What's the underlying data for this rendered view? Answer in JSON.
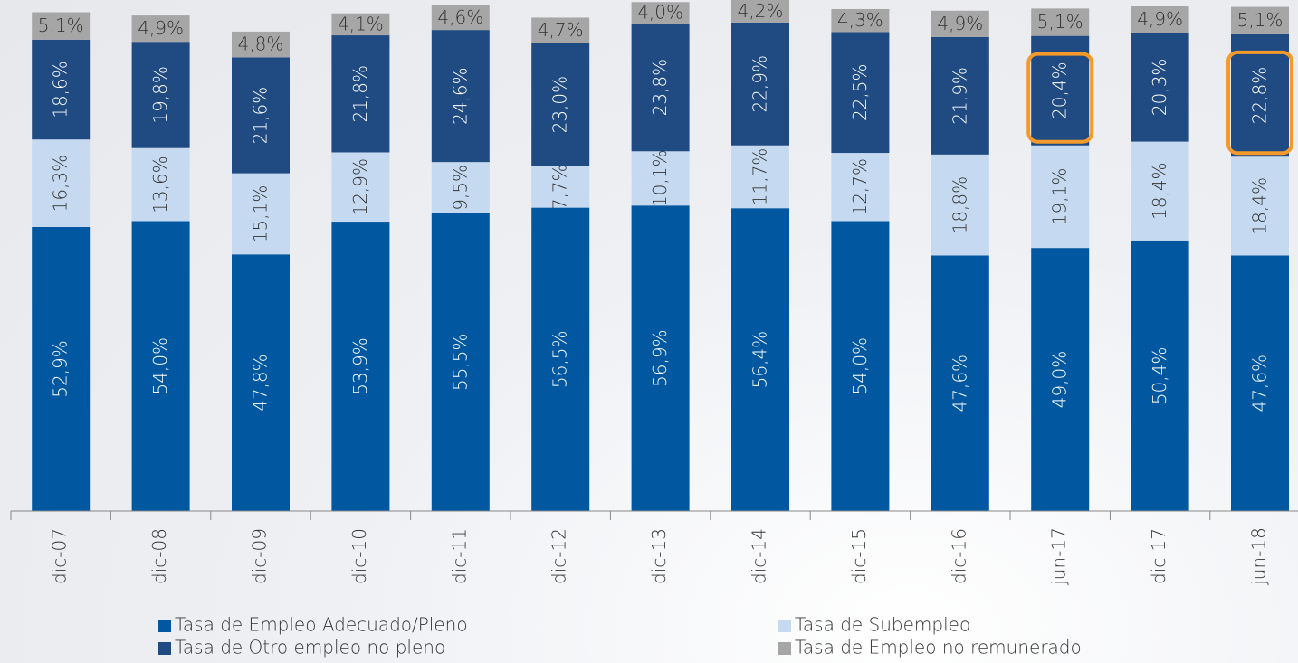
{
  "chart_data": {
    "type": "stacked_bar",
    "categories": [
      "dic-07",
      "dic-08",
      "dic-09",
      "dic-10",
      "dic-11",
      "dic-12",
      "dic-13",
      "dic-14",
      "dic-15",
      "dic-16",
      "jun-17",
      "dic-17",
      "jun-18"
    ],
    "series": [
      {
        "name": "Tasa de Empleo Adecuado/Pleno",
        "color": "#0158a1",
        "label_color": "#ffffff",
        "values": [
          52.9,
          54.0,
          47.8,
          53.9,
          55.5,
          56.5,
          56.9,
          56.4,
          54.0,
          47.6,
          49.0,
          50.4,
          47.6
        ],
        "value_labels": [
          "52,9%",
          "54,0%",
          "47,8%",
          "53,9%",
          "55,5%",
          "56,5%",
          "56,9%",
          "56,4%",
          "54,0%",
          "47,6%",
          "49,0%",
          "50,4%",
          "47,6%"
        ]
      },
      {
        "name": "Tasa de Subempleo",
        "color": "#c5d9f1",
        "label_color": "#333333",
        "values": [
          16.3,
          13.6,
          15.1,
          12.9,
          9.5,
          7.7,
          10.1,
          11.7,
          12.7,
          18.8,
          19.1,
          18.4,
          18.4
        ],
        "value_labels": [
          "16,3%",
          "13,6%",
          "15,1%",
          "12,9%",
          "9,5%",
          "7,7%",
          "10,1%",
          "11,7%",
          "12,7%",
          "18,8%",
          "19,1%",
          "18,4%",
          "18,4%"
        ]
      },
      {
        "name": "Tasa de Otro empleo no pleno",
        "color": "#1f4a82",
        "label_color": "#ffffff",
        "values": [
          18.6,
          19.8,
          21.6,
          21.8,
          24.6,
          23.0,
          23.8,
          22.9,
          22.5,
          21.9,
          20.4,
          20.3,
          22.8
        ],
        "value_labels": [
          "18,6%",
          "19,8%",
          "21,6%",
          "21,8%",
          "24,6%",
          "23,0%",
          "23,8%",
          "22,9%",
          "22,5%",
          "21,9%",
          "20,4%",
          "20,3%",
          "22,8%"
        ]
      },
      {
        "name": "Tasa de Empleo no remunerado",
        "color": "#a6a6a6",
        "label_color": "#333333",
        "values": [
          5.1,
          4.9,
          4.8,
          4.1,
          4.6,
          4.7,
          4.0,
          4.2,
          4.3,
          4.9,
          5.1,
          4.9,
          5.1
        ],
        "value_labels": [
          "5,1%",
          "4,9%",
          "4,8%",
          "4,1%",
          "4,6%",
          "4,7%",
          "4,0%",
          "4,2%",
          "4,3%",
          "4,9%",
          "5,1%",
          "4,9%",
          "5,1%"
        ]
      }
    ],
    "ylim": [
      0,
      94
    ],
    "highlights": [
      [
        2,
        10
      ],
      [
        2,
        12
      ]
    ],
    "highlight_color": "#f39a2b"
  }
}
